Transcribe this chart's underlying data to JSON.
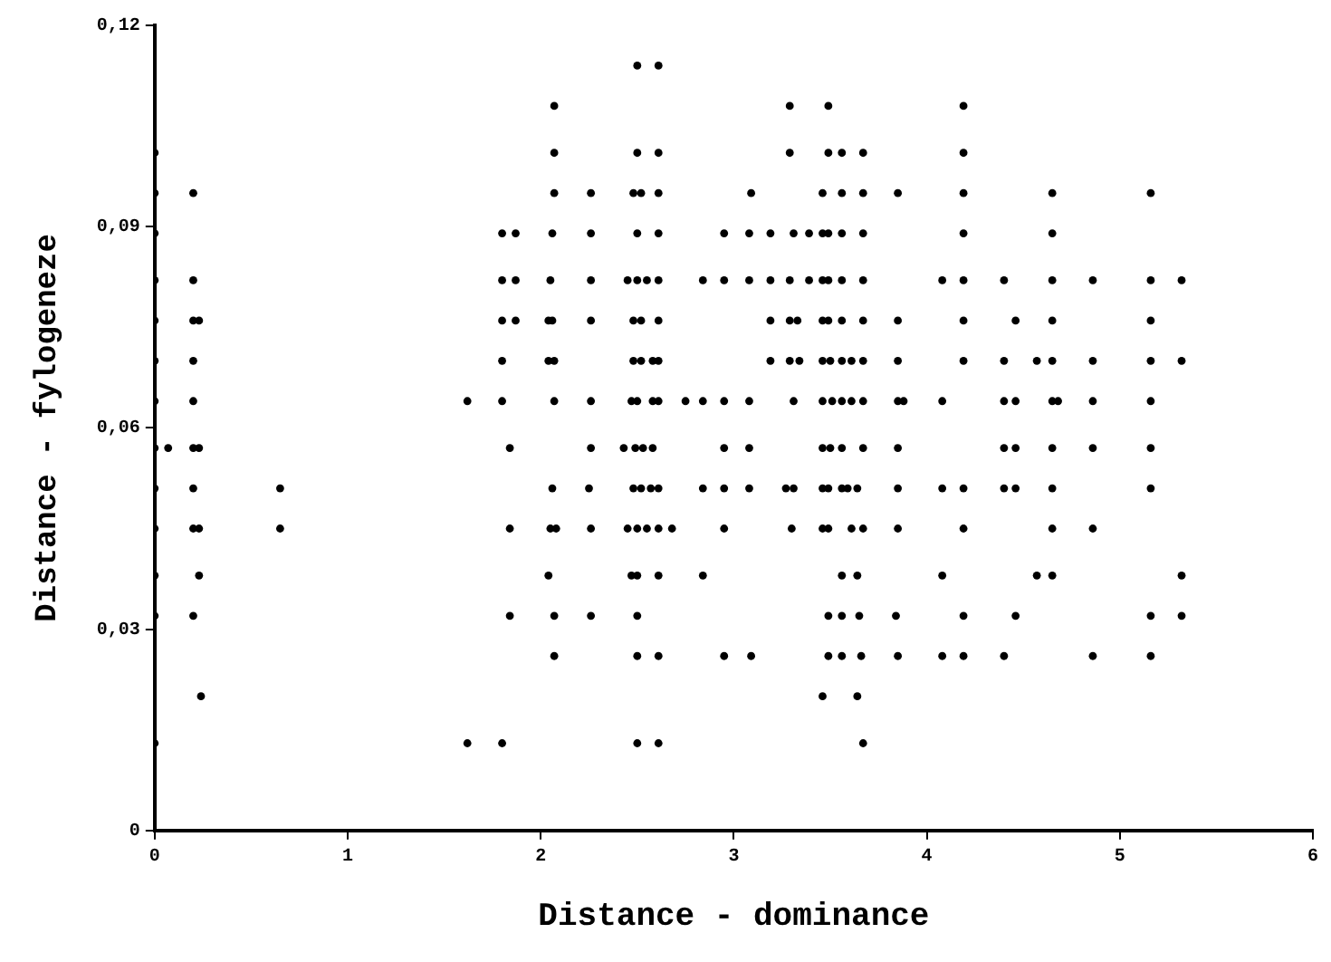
{
  "chart_data": {
    "type": "scatter",
    "xlabel": "Distance - dominance",
    "ylabel": "Distance - fylogeneze",
    "xlim": [
      0,
      6
    ],
    "ylim": [
      0,
      0.12
    ],
    "xticks": [
      0,
      1,
      2,
      3,
      4,
      5,
      6
    ],
    "yticks": [
      0,
      {
        "value": 0.03,
        "label": "0,03"
      },
      {
        "value": 0.06,
        "label": "0,06"
      },
      {
        "value": 0.09,
        "label": "0,09"
      },
      {
        "value": 0.12,
        "label": "0,12"
      }
    ],
    "grid": false,
    "legend": false,
    "marker": "circle",
    "series": [
      {
        "color": "#000000",
        "x": [
          2.5,
          2.61,
          2.07,
          3.29,
          3.49,
          4.19,
          0,
          2.07,
          2.5,
          2.61,
          3.29,
          3.49,
          3.56,
          3.67,
          4.19,
          0,
          0.2,
          2.07,
          2.26,
          2.48,
          2.52,
          2.61,
          3.09,
          3.46,
          3.56,
          3.67,
          3.85,
          4.19,
          4.65,
          5.16,
          0,
          1.8,
          1.87,
          2.06,
          2.26,
          2.5,
          2.61,
          2.95,
          3.08,
          3.19,
          3.31,
          3.39,
          3.46,
          3.49,
          3.56,
          3.67,
          4.19,
          4.65,
          0,
          0.2,
          1.8,
          1.87,
          2.05,
          2.26,
          2.45,
          2.5,
          2.55,
          2.61,
          2.84,
          2.95,
          3.08,
          3.19,
          3.29,
          3.39,
          3.46,
          3.49,
          3.56,
          3.67,
          4.08,
          4.19,
          4.4,
          4.65,
          4.86,
          5.16,
          5.32,
          0,
          0.2,
          0.23,
          1.8,
          1.87,
          2.04,
          2.06,
          2.26,
          2.48,
          2.52,
          2.61,
          3.19,
          3.29,
          3.33,
          3.46,
          3.49,
          3.56,
          3.67,
          3.85,
          4.19,
          4.46,
          4.65,
          5.16,
          0,
          0.2,
          1.8,
          2.04,
          2.07,
          2.48,
          2.52,
          2.58,
          2.61,
          3.19,
          3.29,
          3.34,
          3.46,
          3.5,
          3.56,
          3.61,
          3.67,
          3.85,
          4.19,
          4.4,
          4.57,
          4.65,
          4.86,
          5.16,
          5.32,
          0,
          0.2,
          1.62,
          1.8,
          2.07,
          2.26,
          2.47,
          2.5,
          2.58,
          2.61,
          2.75,
          2.84,
          2.95,
          3.08,
          3.31,
          3.46,
          3.51,
          3.56,
          3.61,
          3.67,
          3.85,
          3.88,
          4.08,
          4.4,
          4.46,
          4.65,
          4.68,
          4.86,
          5.16,
          0,
          0.07,
          0.2,
          0.23,
          1.84,
          2.26,
          2.43,
          2.49,
          2.53,
          2.58,
          2.95,
          3.08,
          3.46,
          3.5,
          3.56,
          3.67,
          3.85,
          4.4,
          4.46,
          4.65,
          4.86,
          5.16,
          0,
          0.2,
          0.65,
          2.06,
          2.25,
          2.48,
          2.52,
          2.57,
          2.61,
          2.84,
          2.95,
          3.08,
          3.27,
          3.31,
          3.46,
          3.49,
          3.56,
          3.59,
          3.64,
          3.85,
          4.08,
          4.19,
          4.4,
          4.46,
          4.65,
          5.16,
          0,
          0.2,
          0.23,
          0.65,
          1.84,
          2.05,
          2.08,
          2.26,
          2.45,
          2.5,
          2.55,
          2.61,
          2.68,
          2.95,
          3.3,
          3.46,
          3.49,
          3.61,
          3.67,
          3.85,
          4.19,
          4.65,
          4.86,
          0,
          0.23,
          2.04,
          2.47,
          2.5,
          2.61,
          2.84,
          3.56,
          3.64,
          4.08,
          4.57,
          4.65,
          5.32,
          0,
          0.2,
          1.84,
          2.07,
          2.26,
          2.5,
          3.49,
          3.56,
          3.65,
          3.84,
          4.19,
          4.46,
          5.16,
          5.32,
          2.07,
          2.5,
          2.61,
          2.95,
          3.09,
          3.49,
          3.56,
          3.66,
          3.85,
          4.08,
          4.19,
          4.4,
          4.86,
          5.16,
          0.24,
          3.46,
          3.64,
          0,
          1.62,
          1.8,
          2.5,
          2.61,
          3.67
        ],
        "values": [
          0.114,
          0.114,
          0.108,
          0.108,
          0.108,
          0.108,
          0.101,
          0.101,
          0.101,
          0.101,
          0.101,
          0.101,
          0.101,
          0.101,
          0.101,
          0.095,
          0.095,
          0.095,
          0.095,
          0.095,
          0.095,
          0.095,
          0.095,
          0.095,
          0.095,
          0.095,
          0.095,
          0.095,
          0.095,
          0.095,
          0.089,
          0.089,
          0.089,
          0.089,
          0.089,
          0.089,
          0.089,
          0.089,
          0.089,
          0.089,
          0.089,
          0.089,
          0.089,
          0.089,
          0.089,
          0.089,
          0.089,
          0.089,
          0.082,
          0.082,
          0.082,
          0.082,
          0.082,
          0.082,
          0.082,
          0.082,
          0.082,
          0.082,
          0.082,
          0.082,
          0.082,
          0.082,
          0.082,
          0.082,
          0.082,
          0.082,
          0.082,
          0.082,
          0.082,
          0.082,
          0.082,
          0.082,
          0.082,
          0.082,
          0.082,
          0.076,
          0.076,
          0.076,
          0.076,
          0.076,
          0.076,
          0.076,
          0.076,
          0.076,
          0.076,
          0.076,
          0.076,
          0.076,
          0.076,
          0.076,
          0.076,
          0.076,
          0.076,
          0.076,
          0.076,
          0.076,
          0.076,
          0.076,
          0.07,
          0.07,
          0.07,
          0.07,
          0.07,
          0.07,
          0.07,
          0.07,
          0.07,
          0.07,
          0.07,
          0.07,
          0.07,
          0.07,
          0.07,
          0.07,
          0.07,
          0.07,
          0.07,
          0.07,
          0.07,
          0.07,
          0.07,
          0.07,
          0.07,
          0.064,
          0.064,
          0.064,
          0.064,
          0.064,
          0.064,
          0.064,
          0.064,
          0.064,
          0.064,
          0.064,
          0.064,
          0.064,
          0.064,
          0.064,
          0.064,
          0.064,
          0.064,
          0.064,
          0.064,
          0.064,
          0.064,
          0.064,
          0.064,
          0.064,
          0.064,
          0.064,
          0.064,
          0.064,
          0.057,
          0.057,
          0.057,
          0.057,
          0.057,
          0.057,
          0.057,
          0.057,
          0.057,
          0.057,
          0.057,
          0.057,
          0.057,
          0.057,
          0.057,
          0.057,
          0.057,
          0.057,
          0.057,
          0.057,
          0.057,
          0.057,
          0.051,
          0.051,
          0.051,
          0.051,
          0.051,
          0.051,
          0.051,
          0.051,
          0.051,
          0.051,
          0.051,
          0.051,
          0.051,
          0.051,
          0.051,
          0.051,
          0.051,
          0.051,
          0.051,
          0.051,
          0.051,
          0.051,
          0.051,
          0.051,
          0.051,
          0.051,
          0.045,
          0.045,
          0.045,
          0.045,
          0.045,
          0.045,
          0.045,
          0.045,
          0.045,
          0.045,
          0.045,
          0.045,
          0.045,
          0.045,
          0.045,
          0.045,
          0.045,
          0.045,
          0.045,
          0.045,
          0.045,
          0.045,
          0.045,
          0.038,
          0.038,
          0.038,
          0.038,
          0.038,
          0.038,
          0.038,
          0.038,
          0.038,
          0.038,
          0.038,
          0.038,
          0.038,
          0.032,
          0.032,
          0.032,
          0.032,
          0.032,
          0.032,
          0.032,
          0.032,
          0.032,
          0.032,
          0.032,
          0.032,
          0.032,
          0.032,
          0.026,
          0.026,
          0.026,
          0.026,
          0.026,
          0.026,
          0.026,
          0.026,
          0.026,
          0.026,
          0.026,
          0.026,
          0.026,
          0.026,
          0.02,
          0.02,
          0.02,
          0.013,
          0.013,
          0.013,
          0.013,
          0.013,
          0.013
        ]
      }
    ]
  }
}
